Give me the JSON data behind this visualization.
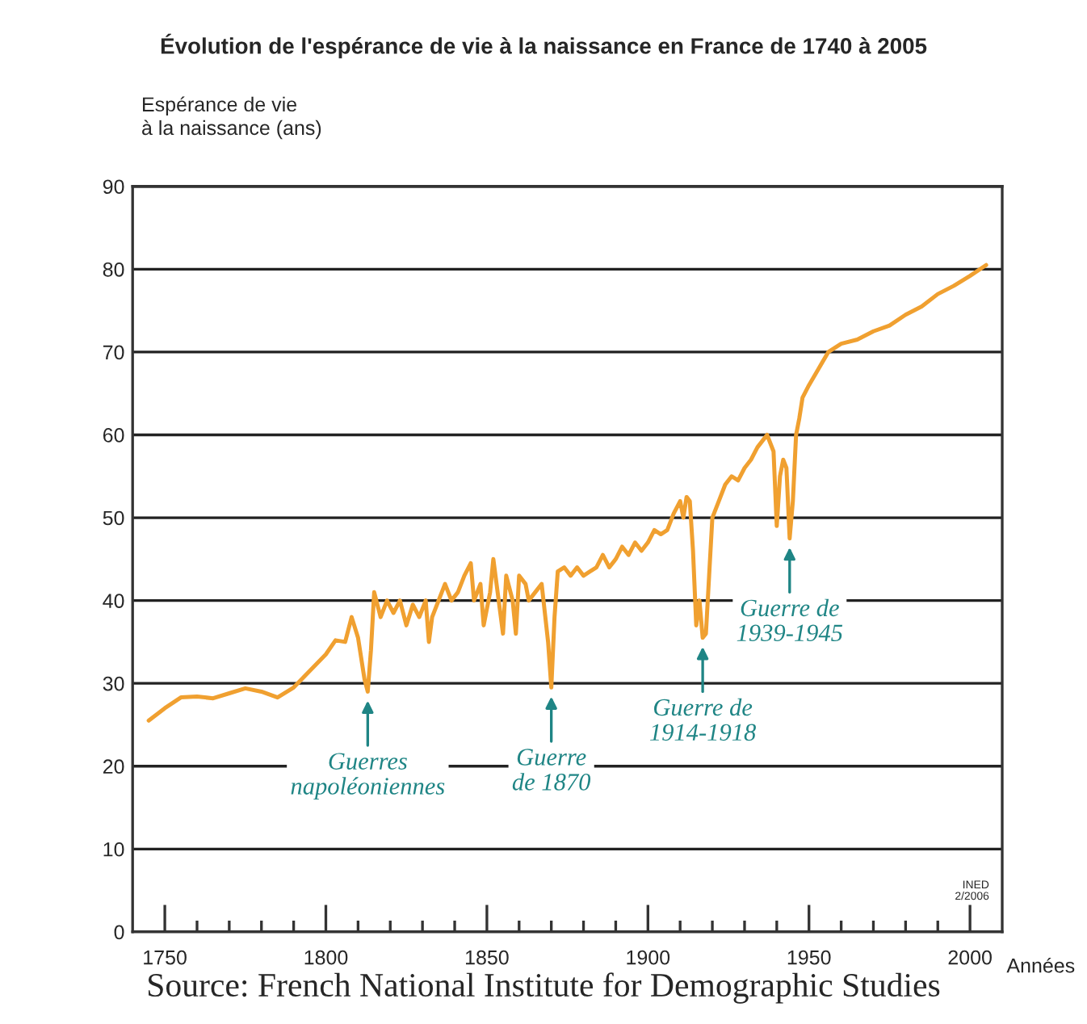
{
  "chart_data": {
    "type": "line",
    "title": "Évolution de l'espérance de vie à la naissance en France de 1740 à 2005",
    "ylabel": "Espérance de vie\nà la naissance (ans)",
    "xlabel": "Années",
    "x": [
      1745,
      1750,
      1755,
      1760,
      1765,
      1770,
      1775,
      1780,
      1785,
      1790,
      1795,
      1800,
      1803,
      1806,
      1808,
      1810,
      1812,
      1813,
      1814,
      1815,
      1817,
      1819,
      1821,
      1823,
      1825,
      1827,
      1829,
      1831,
      1832,
      1833,
      1835,
      1837,
      1839,
      1841,
      1843,
      1845,
      1846,
      1848,
      1849,
      1851,
      1852,
      1854,
      1855,
      1856,
      1858,
      1859,
      1860,
      1862,
      1863,
      1865,
      1867,
      1869,
      1870,
      1871,
      1872,
      1874,
      1876,
      1878,
      1880,
      1882,
      1884,
      1886,
      1888,
      1890,
      1892,
      1894,
      1896,
      1898,
      1900,
      1902,
      1904,
      1906,
      1908,
      1910,
      1911,
      1912,
      1913,
      1914,
      1915,
      1916,
      1917,
      1918,
      1919,
      1920,
      1922,
      1924,
      1926,
      1928,
      1930,
      1932,
      1934,
      1936,
      1937,
      1939,
      1940,
      1941,
      1942,
      1943,
      1944,
      1945,
      1946,
      1947,
      1948,
      1950,
      1953,
      1956,
      1960,
      1965,
      1970,
      1975,
      1980,
      1985,
      1990,
      1995,
      2000,
      2005
    ],
    "series": [
      {
        "color": "#f0a030",
        "values": [
          25.5,
          27,
          28.3,
          28.4,
          28.2,
          28.8,
          29.4,
          29,
          28.3,
          29.5,
          31.5,
          33.5,
          35.2,
          35,
          38,
          35.5,
          30.5,
          29,
          34,
          41,
          38,
          40,
          38.5,
          40,
          37,
          39.5,
          38,
          40,
          35,
          38,
          40,
          42,
          40,
          41,
          43,
          44.5,
          40,
          42,
          37,
          41,
          45,
          39,
          36,
          43,
          40,
          36,
          43,
          42,
          40,
          41,
          42,
          35,
          29.5,
          38,
          43.5,
          44,
          43,
          44,
          43,
          43.5,
          44,
          45.5,
          44,
          45,
          46.5,
          45.5,
          47,
          46,
          47,
          48.5,
          48,
          48.5,
          50.5,
          52,
          50,
          52.5,
          52,
          46,
          37,
          40,
          35.5,
          36,
          43,
          50,
          52,
          54,
          55,
          54.5,
          56,
          57,
          58.5,
          59.5,
          60,
          58,
          49,
          55,
          57,
          56,
          47.5,
          52,
          60,
          62,
          64.5,
          66,
          68,
          70,
          71,
          71.5,
          72.5,
          73.2,
          74.5,
          75.5,
          77,
          78,
          79.2,
          80.5
        ]
      }
    ],
    "xlim": [
      1740,
      2010
    ],
    "ylim": [
      0,
      90
    ],
    "xticks": [
      1750,
      {
        "value": 1760,
        "label": null
      },
      {
        "value": 1770,
        "label": null
      },
      {
        "value": 1780,
        "label": null
      },
      {
        "value": 1790,
        "label": null
      },
      1800,
      {
        "value": 1810,
        "label": null
      },
      {
        "value": 1820,
        "label": null
      },
      {
        "value": 1830,
        "label": null
      },
      {
        "value": 1840,
        "label": null
      },
      1850,
      {
        "value": 1860,
        "label": null
      },
      {
        "value": 1870,
        "label": null
      },
      {
        "value": 1880,
        "label": null
      },
      {
        "value": 1890,
        "label": null
      },
      1900,
      {
        "value": 1910,
        "label": null
      },
      {
        "value": 1920,
        "label": null
      },
      {
        "value": 1930,
        "label": null
      },
      {
        "value": 1940,
        "label": null
      },
      1950,
      {
        "value": 1960,
        "label": null
      },
      {
        "value": 1970,
        "label": null
      },
      {
        "value": 1980,
        "label": null
      },
      {
        "value": 1990,
        "label": null
      },
      2000
    ],
    "yticks": [
      0,
      10,
      20,
      30,
      40,
      50,
      60,
      70,
      80,
      90
    ],
    "grid": "y",
    "legend": false,
    "marker": "none",
    "line_style": "solid",
    "annotations": [
      {
        "text": "Guerres\nnapoléoniennes",
        "x": 1813,
        "y": 29
      },
      {
        "text": "Guerre\nde 1870",
        "x": 1870,
        "y": 29.5
      },
      {
        "text": "Guerre de\n1914-1918",
        "x": 1917,
        "y": 35.5
      },
      {
        "text": "Guerre de\n1939-1945",
        "x": 1944,
        "y": 47.5
      },
      "INED\n2/2006",
      "Source: French National Institute for Demographic Studies"
    ]
  }
}
